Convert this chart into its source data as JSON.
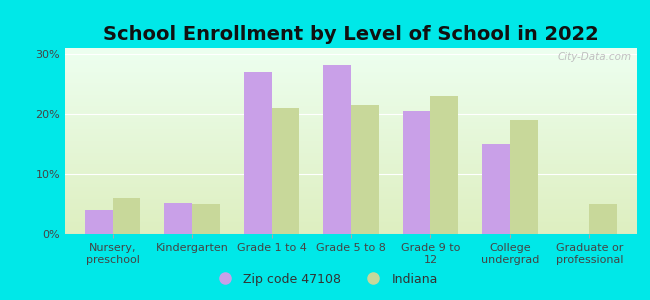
{
  "title": "School Enrollment by Level of School in 2022",
  "categories": [
    "Nursery,\npreschool",
    "Kindergarten",
    "Grade 1 to 4",
    "Grade 5 to 8",
    "Grade 9 to\n12",
    "College\nundergrad",
    "Graduate or\nprofessional"
  ],
  "zip_values": [
    4.0,
    5.2,
    27.0,
    28.2,
    20.5,
    15.0,
    0.0
  ],
  "indiana_values": [
    6.0,
    5.0,
    21.0,
    21.5,
    23.0,
    19.0,
    5.0
  ],
  "zip_color": "#c9a0e8",
  "indiana_color": "#c8d89a",
  "zip_label": "Zip code 47108",
  "indiana_label": "Indiana",
  "background_outer": "#00e8e8",
  "background_inner_top": "#edfff0",
  "background_inner_bottom": "#deefc0",
  "ylim": [
    0,
    31
  ],
  "yticks": [
    0,
    10,
    20,
    30
  ],
  "ytick_labels": [
    "0%",
    "10%",
    "20%",
    "30%"
  ],
  "title_fontsize": 14,
  "tick_fontsize": 8,
  "legend_fontsize": 9,
  "bar_width": 0.35
}
